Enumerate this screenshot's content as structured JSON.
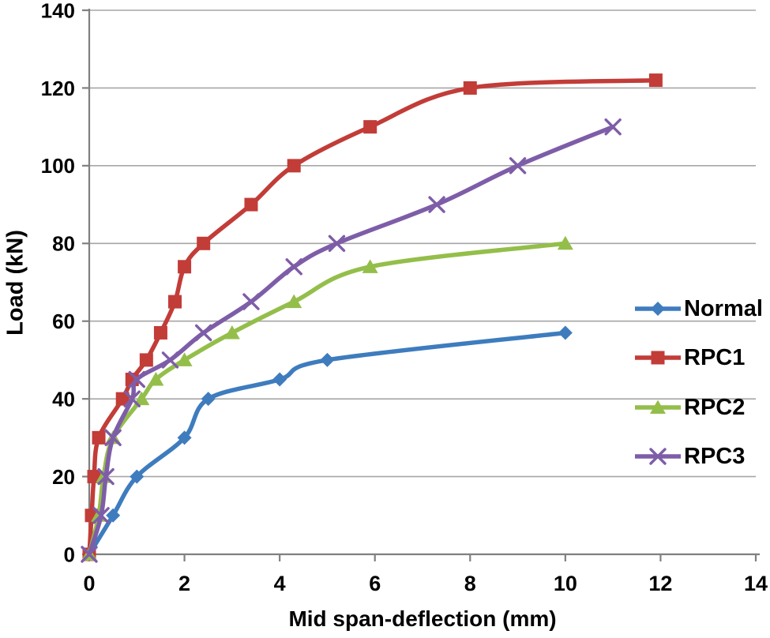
{
  "figure": {
    "background": "#ffffff",
    "text_color": "#000000",
    "axis_color": "#808080",
    "grid_color": "#a6a6a6"
  },
  "chart_data": {
    "type": "line",
    "title": "",
    "xlabel": "Mid span-deflection (mm)",
    "ylabel": "Load (kN)",
    "xlim": [
      0,
      14
    ],
    "ylim": [
      0,
      140
    ],
    "x_ticks": [
      0,
      2,
      4,
      6,
      8,
      10,
      12,
      14
    ],
    "y_ticks": [
      0,
      20,
      40,
      60,
      80,
      100,
      120,
      140
    ],
    "grid": "horizontal",
    "legend_position": "right-middle",
    "series": [
      {
        "name": "Normal",
        "color": "#3E7CBE",
        "marker": "diamond",
        "points": [
          [
            0,
            0
          ],
          [
            0.5,
            10
          ],
          [
            1,
            20
          ],
          [
            2,
            30
          ],
          [
            2.5,
            40
          ],
          [
            4,
            45
          ],
          [
            5,
            50
          ],
          [
            10,
            57
          ]
        ]
      },
      {
        "name": "RPC1",
        "color": "#C23C38",
        "marker": "square",
        "points": [
          [
            0,
            0
          ],
          [
            0.05,
            10
          ],
          [
            0.1,
            20
          ],
          [
            0.2,
            30
          ],
          [
            0.7,
            40
          ],
          [
            0.9,
            45
          ],
          [
            1.2,
            50
          ],
          [
            1.5,
            57
          ],
          [
            1.8,
            65
          ],
          [
            2.0,
            74
          ],
          [
            2.4,
            80
          ],
          [
            3.4,
            90
          ],
          [
            4.3,
            100
          ],
          [
            5.9,
            110
          ],
          [
            8.0,
            120
          ],
          [
            11.9,
            122
          ]
        ]
      },
      {
        "name": "RPC2",
        "color": "#94BE4A",
        "marker": "triangle",
        "points": [
          [
            0,
            0
          ],
          [
            0.2,
            10
          ],
          [
            0.3,
            20
          ],
          [
            0.5,
            30
          ],
          [
            1.1,
            40
          ],
          [
            1.4,
            45
          ],
          [
            2.0,
            50
          ],
          [
            3.0,
            57
          ],
          [
            4.3,
            65
          ],
          [
            5.9,
            74
          ],
          [
            10,
            80
          ]
        ]
      },
      {
        "name": "RPC3",
        "color": "#7E5DA8",
        "marker": "x",
        "points": [
          [
            0,
            0
          ],
          [
            0.25,
            10
          ],
          [
            0.35,
            20
          ],
          [
            0.5,
            30
          ],
          [
            0.9,
            40
          ],
          [
            1.0,
            45
          ],
          [
            1.7,
            50
          ],
          [
            2.4,
            57
          ],
          [
            3.4,
            65
          ],
          [
            4.3,
            74
          ],
          [
            5.2,
            80
          ],
          [
            7.3,
            90
          ],
          [
            9.0,
            100
          ],
          [
            11.0,
            110
          ]
        ]
      }
    ]
  }
}
